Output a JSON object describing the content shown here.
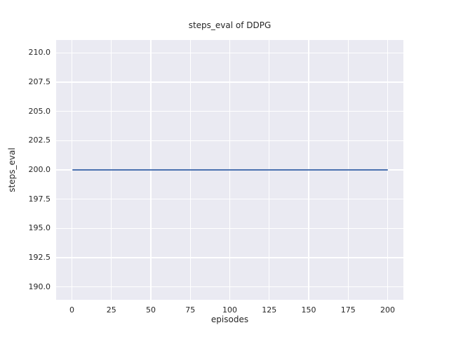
{
  "chart_data": {
    "type": "line",
    "title": "steps_eval of DDPG",
    "xlabel": "episodes",
    "ylabel": "steps_eval",
    "xlim": [
      -10,
      210
    ],
    "ylim": [
      188.9,
      211.1
    ],
    "xtick_labels": [
      "0",
      "25",
      "50",
      "75",
      "100",
      "125",
      "150",
      "175",
      "200"
    ],
    "ytick_labels": [
      "190.0",
      "192.5",
      "195.0",
      "197.5",
      "200.0",
      "202.5",
      "205.0",
      "207.5",
      "210.0"
    ],
    "grid": true,
    "legend_position": "none",
    "series": [
      {
        "name": "DDPG",
        "color": "#4C72B0",
        "x_start": 0,
        "x_end": 200,
        "y_constant": 200,
        "description": "constant horizontal line: steps_eval = 200 for every episode from 0 to 200"
      }
    ],
    "colors": {
      "figure_bg": "#FFFFFF",
      "plot_bg": "#EAEAF2",
      "grid": "#FFFFFF",
      "text": "#262626"
    }
  }
}
